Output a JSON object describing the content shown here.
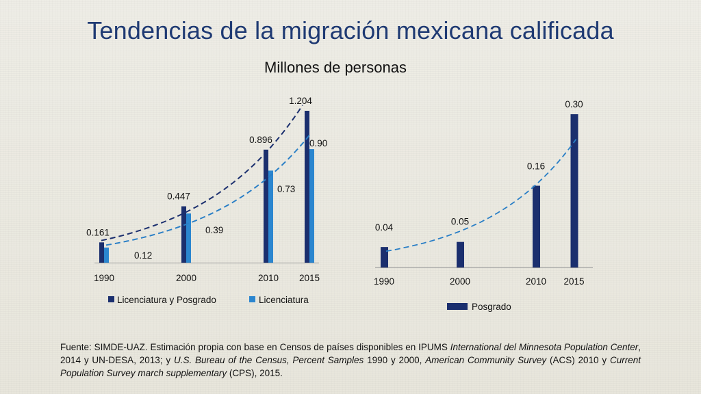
{
  "title": "Tendencias de la migración mexicana calificada",
  "subtitle": "Millones de personas",
  "colors": {
    "dark": "#1b2f6e",
    "light": "#2b86cf",
    "trend_dark": "#1b2f6e",
    "trend_light": "#2a7fc6"
  },
  "chart_data": [
    {
      "type": "bar",
      "x_axis": "years (proportional)",
      "categories": [
        "1990",
        "2000",
        "2010",
        "2015"
      ],
      "series": [
        {
          "name": "Licenciatura y Posgrado",
          "values": [
            0.161,
            0.447,
            0.896,
            1.204
          ],
          "labels": [
            "0.161",
            "0.447",
            "0.896",
            "1.204"
          ],
          "color": "#1b2f6e",
          "trendline": "exponential dashed"
        },
        {
          "name": "Licenciatura",
          "values": [
            0.12,
            0.39,
            0.73,
            0.9
          ],
          "labels": [
            "0.12",
            "0.39",
            "0.73",
            "0.90"
          ],
          "color": "#2b86cf",
          "trendline": "exponential dashed"
        }
      ],
      "ylim": [
        0,
        1.25
      ],
      "legend": "bottom"
    },
    {
      "type": "bar",
      "x_axis": "years (proportional)",
      "categories": [
        "1990",
        "2000",
        "2010",
        "2015"
      ],
      "series": [
        {
          "name": "Posgrado",
          "values": [
            0.04,
            0.05,
            0.16,
            0.3
          ],
          "labels": [
            "0.04",
            "0.05",
            "0.16",
            "0.30"
          ],
          "color": "#1b2f6e",
          "trendline": "exponential dashed"
        }
      ],
      "ylim": [
        0,
        0.32
      ],
      "legend": "bottom"
    }
  ],
  "source": {
    "parts": [
      {
        "t": "Fuente: SIMDE-UAZ. Estimación propia con base en Censos de países disponibles en IPUMS ",
        "i": false
      },
      {
        "t": "International del Minnesota Population Center",
        "i": true
      },
      {
        "t": ", 2014 y UN-DESA, 2013; y ",
        "i": false
      },
      {
        "t": "U.S. Bureau of the Census, Percent Samples",
        "i": true
      },
      {
        "t": " 1990 y 2000, ",
        "i": false
      },
      {
        "t": "American Community Survey",
        "i": true
      },
      {
        "t": " (ACS) 2010 y ",
        "i": false
      },
      {
        "t": "Current Population Survey march supplementary",
        "i": true
      },
      {
        "t": " (CPS), 2015.",
        "i": false
      }
    ]
  }
}
